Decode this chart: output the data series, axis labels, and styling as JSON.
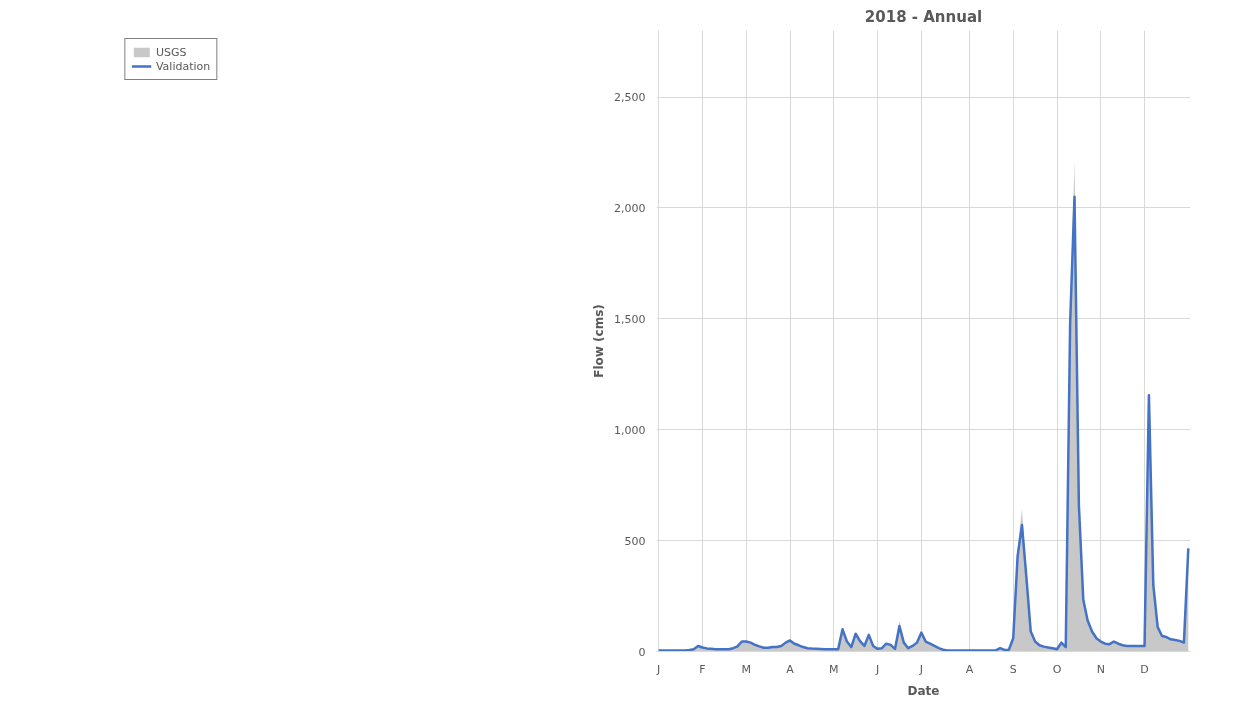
{
  "chart_data": {
    "type": "area",
    "title": "2018 - Annual",
    "xlabel": "Date",
    "ylabel": "Flow (cms)",
    "categories": [
      "J",
      null,
      null,
      null,
      null,
      null,
      null,
      null,
      null,
      null,
      "F",
      null,
      null,
      null,
      null,
      null,
      null,
      null,
      null,
      null,
      "M",
      null,
      null,
      null,
      null,
      null,
      null,
      null,
      null,
      null,
      "A",
      null,
      null,
      null,
      null,
      null,
      null,
      null,
      null,
      null,
      "M",
      null,
      null,
      null,
      null,
      null,
      null,
      null,
      null,
      null,
      "J",
      null,
      null,
      null,
      null,
      null,
      null,
      null,
      null,
      null,
      "J",
      null,
      null,
      null,
      null,
      null,
      null,
      null,
      null,
      null,
      null,
      "A",
      null,
      null,
      null,
      null,
      null,
      null,
      null,
      null,
      null,
      "S",
      null,
      null,
      null,
      null,
      null,
      null,
      null,
      null,
      null,
      "O",
      null,
      null,
      null,
      null,
      null,
      null,
      null,
      null,
      null,
      "N",
      null,
      null,
      null,
      null,
      null,
      null,
      null,
      null,
      null,
      "D",
      null,
      null,
      null,
      null,
      null,
      null,
      null,
      null,
      null,
      null
    ],
    "series": [
      {
        "name": "USGS",
        "color": "#c8c8c8",
        "values": [
          5,
          5,
          5,
          5,
          5,
          5,
          5,
          7,
          10,
          25,
          18,
          14,
          12,
          10,
          10,
          10,
          10,
          15,
          23,
          45,
          45,
          40,
          30,
          23,
          17,
          17,
          20,
          20,
          25,
          40,
          50,
          35,
          28,
          20,
          15,
          13,
          12,
          11,
          10,
          10,
          10,
          10,
          100,
          45,
          20,
          80,
          47,
          25,
          75,
          25,
          12,
          15,
          35,
          30,
          12,
          140,
          40,
          15,
          25,
          40,
          85,
          45,
          35,
          25,
          15,
          8,
          5,
          5,
          5,
          5,
          5,
          5,
          5,
          5,
          5,
          5,
          5,
          5,
          15,
          7,
          8,
          70,
          470,
          640,
          350,
          100,
          45,
          28,
          22,
          18,
          15,
          10,
          40,
          20,
          1520,
          2215,
          700,
          260,
          150,
          90,
          60,
          45,
          35,
          33,
          45,
          35,
          28,
          25,
          25,
          25,
          25,
          25,
          1130,
          320,
          110,
          70,
          65,
          55,
          52,
          48,
          40,
          505
        ]
      },
      {
        "name": "Validation",
        "type": "line",
        "color": "#4472c4",
        "values": [
          5,
          5,
          5,
          5,
          5,
          5,
          5,
          7,
          10,
          25,
          18,
          14,
          12,
          10,
          10,
          10,
          10,
          15,
          23,
          45,
          45,
          40,
          30,
          23,
          17,
          17,
          20,
          20,
          25,
          40,
          50,
          35,
          28,
          20,
          15,
          13,
          12,
          11,
          10,
          10,
          10,
          10,
          100,
          45,
          20,
          80,
          47,
          25,
          75,
          25,
          12,
          15,
          35,
          30,
          12,
          115,
          40,
          15,
          25,
          40,
          85,
          45,
          35,
          25,
          15,
          8,
          5,
          5,
          5,
          5,
          5,
          5,
          5,
          5,
          5,
          5,
          5,
          5,
          15,
          7,
          8,
          60,
          430,
          570,
          335,
          90,
          45,
          28,
          22,
          18,
          15,
          10,
          40,
          20,
          1480,
          2050,
          660,
          235,
          140,
          90,
          60,
          45,
          35,
          33,
          45,
          35,
          28,
          25,
          25,
          25,
          25,
          25,
          1155,
          300,
          110,
          70,
          65,
          55,
          52,
          48,
          40,
          465
        ]
      }
    ],
    "ylim": [
      0,
      2800
    ],
    "yticks": [
      0,
      500,
      {
        "value": 1000,
        "label": "1,000"
      },
      {
        "value": 1500,
        "label": "1,500"
      },
      {
        "value": 2000,
        "label": "2,000"
      },
      {
        "value": 2500,
        "label": "2,500"
      }
    ],
    "grid": true,
    "legend": "top left",
    "marker": "none",
    "line_style": "solid"
  }
}
